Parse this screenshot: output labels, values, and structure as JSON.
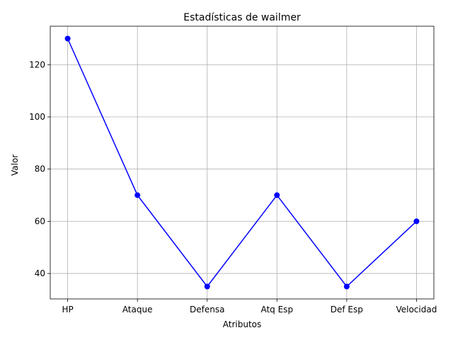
{
  "chart_data": {
    "type": "line",
    "title": "Estadísticas de wailmer",
    "xlabel": "Atributos",
    "ylabel": "Valor",
    "categories": [
      "HP",
      "Ataque",
      "Defensa",
      "Atq Esp",
      "Def Esp",
      "Velocidad"
    ],
    "series": [
      {
        "values": [
          130,
          70,
          35,
          70,
          35,
          60
        ],
        "color": "#0000ff",
        "marker": "circle"
      }
    ],
    "ylim": [
      30.25,
      134.75
    ],
    "yticks": [
      40,
      60,
      80,
      100,
      120
    ],
    "grid": true,
    "line_color": "#0000ff",
    "grid_color": "#b0b0b0"
  }
}
